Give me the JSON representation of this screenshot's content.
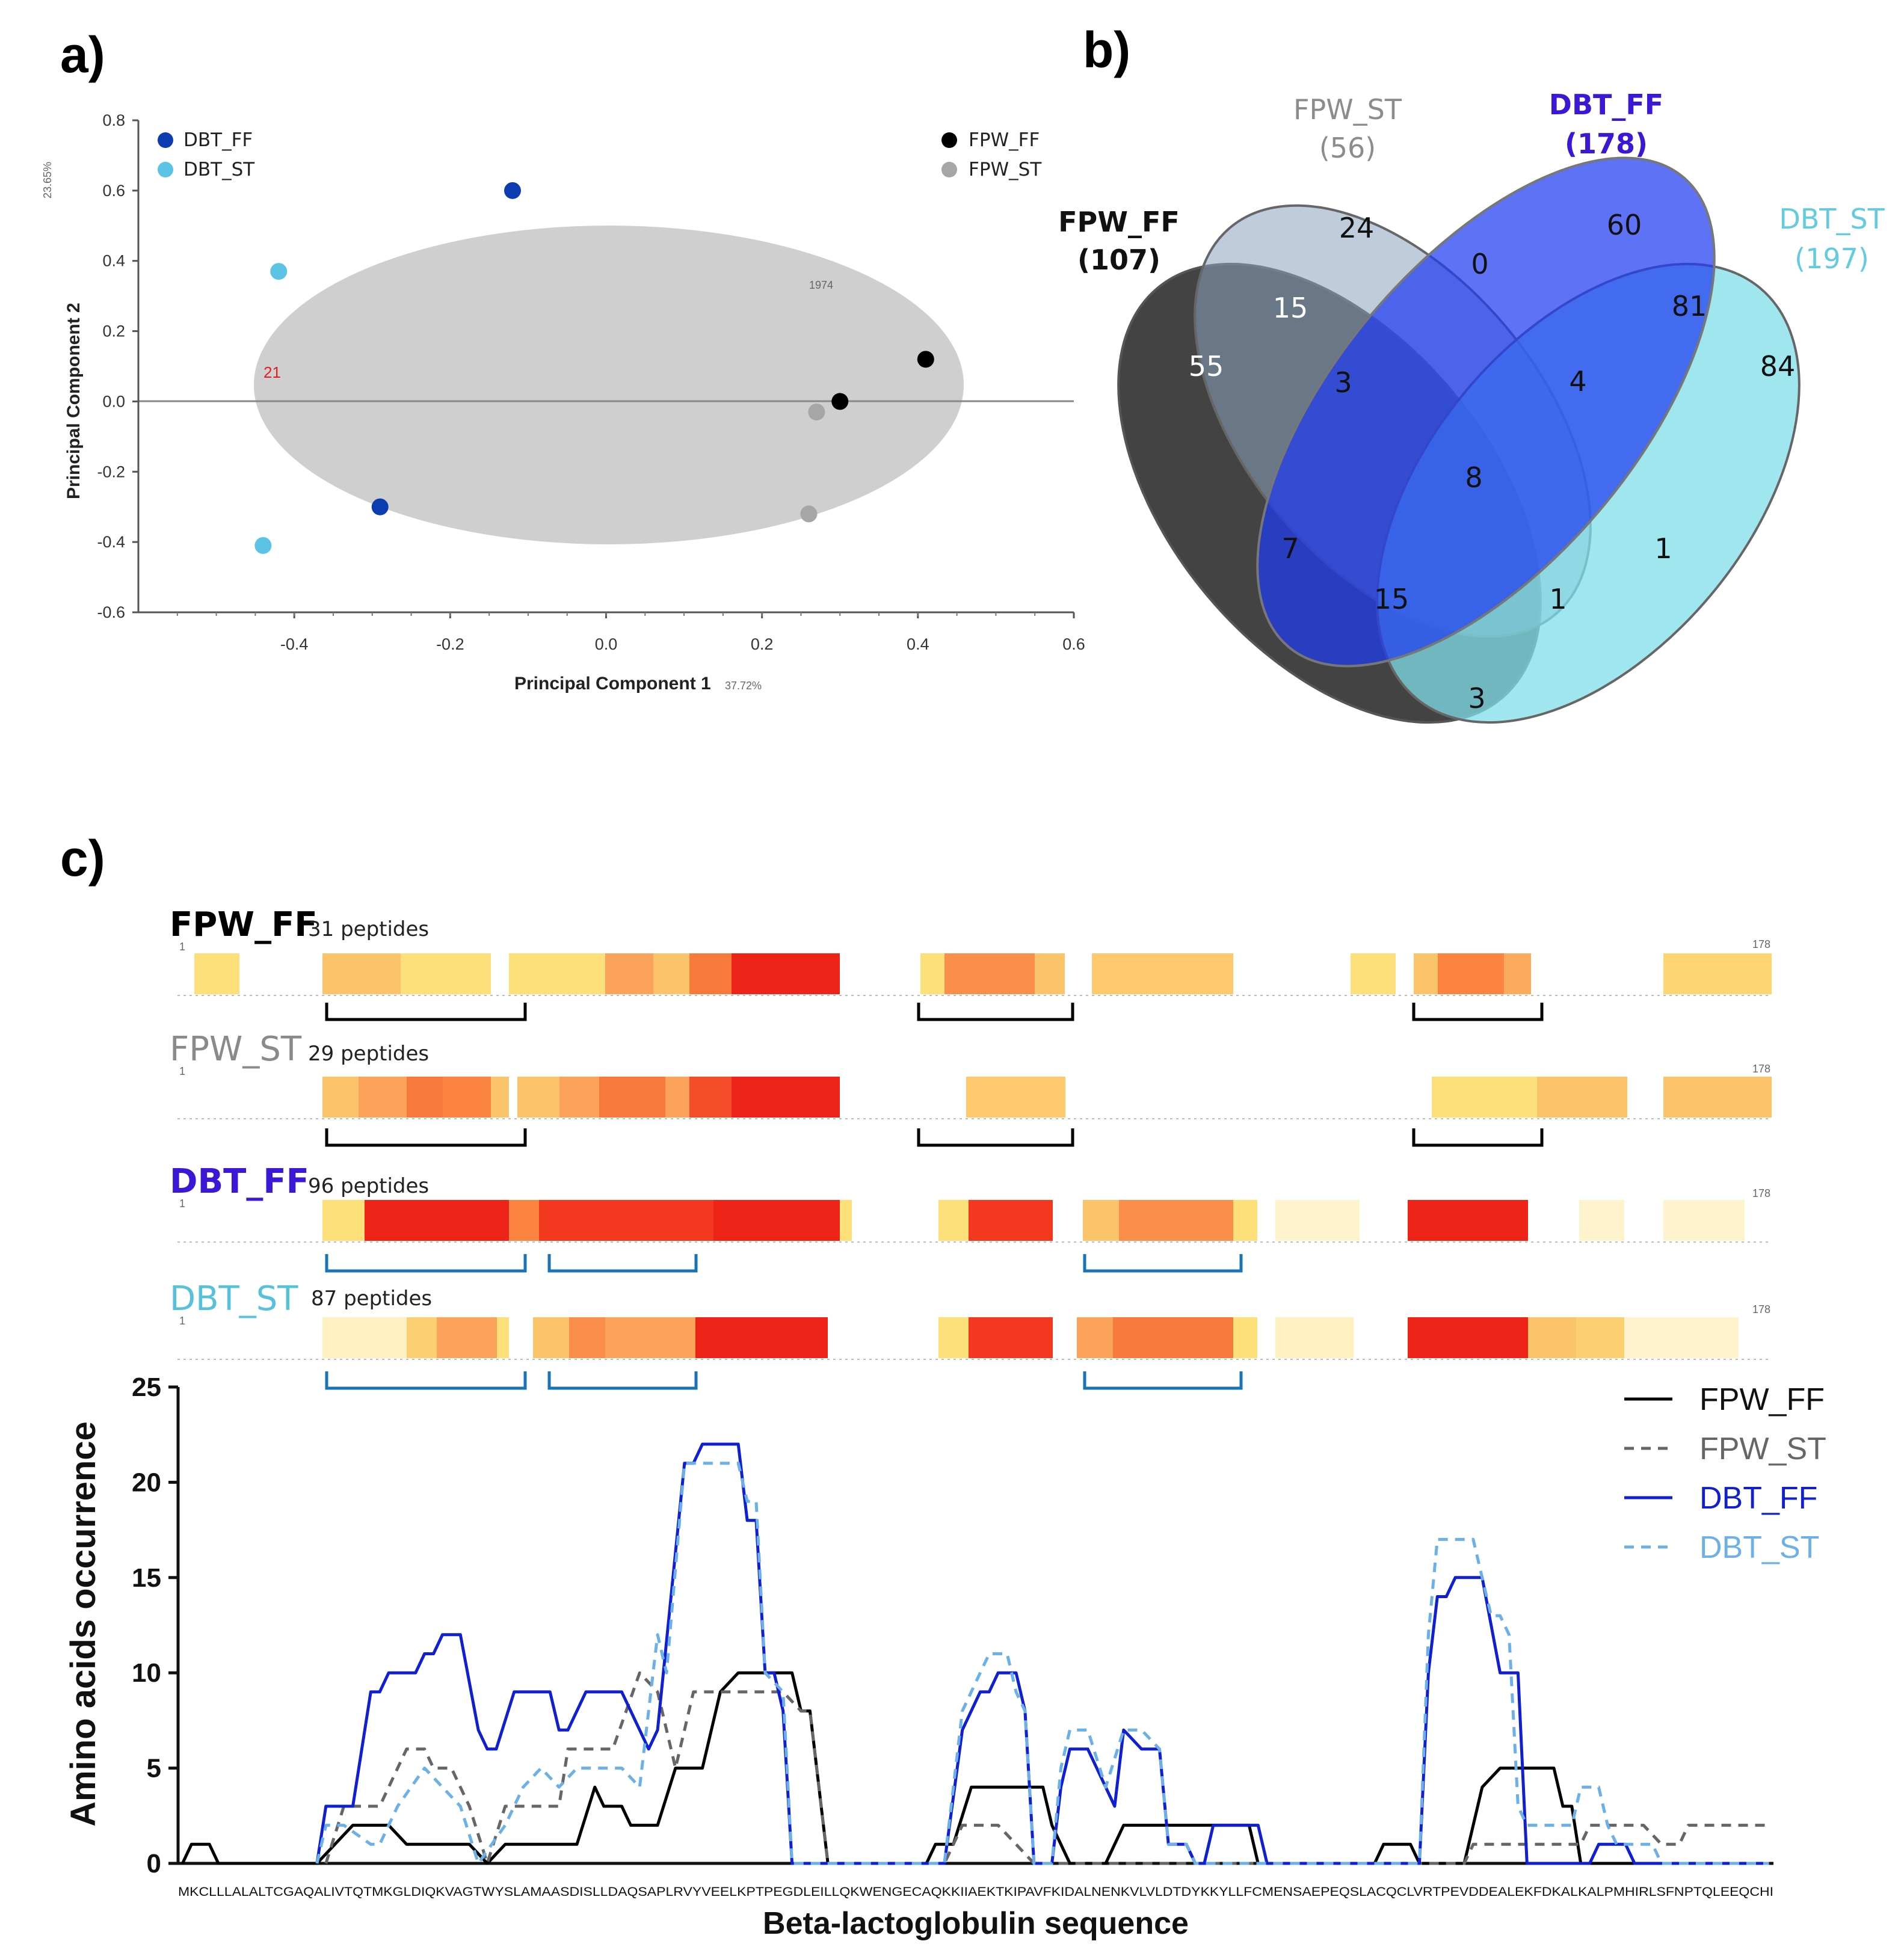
{
  "panels": {
    "a": "a)",
    "b": "b)",
    "c": "c)"
  },
  "chart_data": [
    {
      "type": "scatter",
      "panel": "a",
      "xlabel": "Principal Component 1",
      "ylabel": "Principal Component 2",
      "xlabel_note": "37.72%",
      "ylabel_note": "23.65%",
      "xlim": [
        -0.6,
        0.6
      ],
      "ylim": [
        -0.6,
        0.8
      ],
      "xticks": [
        "-0.4",
        "-0.2",
        "0.0",
        "0.2",
        "0.4",
        "0.6"
      ],
      "yticks": [
        "0.8",
        "0.6",
        "0.4",
        "0.2",
        "0.0",
        "-0.2",
        "-0.4",
        "-0.6"
      ],
      "ellipse_label": "21",
      "ellipse_tag": "1974",
      "series": [
        {
          "name": "DBT_FF",
          "color": "#0d3cb0",
          "points": [
            [
              -0.12,
              0.6
            ],
            [
              -0.29,
              -0.3
            ]
          ]
        },
        {
          "name": "DBT_ST",
          "color": "#5bc4e4",
          "points": [
            [
              -0.42,
              0.37
            ],
            [
              -0.44,
              -0.41
            ]
          ]
        },
        {
          "name": "FPW_FF",
          "color": "#000000",
          "points": [
            [
              0.41,
              0.12
            ],
            [
              0.3,
              0.0
            ]
          ]
        },
        {
          "name": "FPW_ST",
          "color": "#a6a6a6",
          "points": [
            [
              0.27,
              -0.03
            ],
            [
              0.26,
              -0.32
            ]
          ]
        }
      ]
    },
    {
      "type": "venn",
      "panel": "b",
      "sets": [
        {
          "name": "FPW_FF",
          "count": "(107)",
          "color": "#111111"
        },
        {
          "name": "FPW_ST",
          "count": "(56)",
          "color": "#8c8c8c"
        },
        {
          "name": "DBT_FF",
          "count": "(178)",
          "color": "#3b17d6"
        },
        {
          "name": "DBT_ST",
          "count": "(197)",
          "color": "#62cbe0"
        }
      ],
      "regions": [
        {
          "sets": "FPW_FF",
          "value": "55"
        },
        {
          "sets": "FPW_ST",
          "value": "24"
        },
        {
          "sets": "DBT_FF",
          "value": "60"
        },
        {
          "sets": "DBT_ST",
          "value": "84"
        },
        {
          "sets": "FPW_FF+FPW_ST",
          "value": "15"
        },
        {
          "sets": "FPW_ST+DBT_FF",
          "value": "0"
        },
        {
          "sets": "DBT_FF+DBT_ST",
          "value": "81"
        },
        {
          "sets": "FPW_FF+FPW_ST+DBT_FF",
          "value": "3"
        },
        {
          "sets": "FPW_ST+DBT_FF+DBT_ST",
          "value": "4"
        },
        {
          "sets": "all",
          "value": "8"
        },
        {
          "sets": "FPW_FF+DBT_FF",
          "value": "7"
        },
        {
          "sets": "FPW_ST+DBT_ST",
          "value": "1"
        },
        {
          "sets": "FPW_FF+DBT_FF+DBT_ST",
          "value": "15"
        },
        {
          "sets": "FPW_FF+FPW_ST+DBT_ST",
          "value": "1"
        },
        {
          "sets": "FPW_FF+DBT_ST",
          "value": "3"
        }
      ]
    },
    {
      "type": "heatmap",
      "panel": "c-top",
      "start_label": "1",
      "end_label": "178",
      "tracks": [
        {
          "name": "FPW_FF",
          "count": "31 peptides",
          "color": "#000000"
        },
        {
          "name": "FPW_ST",
          "count": "29 peptides",
          "color": "#8a8a8a"
        },
        {
          "name": "DBT_FF",
          "count": "96 peptides",
          "color": "#3b17d6"
        },
        {
          "name": "DBT_ST",
          "count": "87 peptides",
          "color": "#55c1da"
        }
      ]
    },
    {
      "type": "line",
      "panel": "c-bottom",
      "xlabel": "Beta-lactoglobulin sequence",
      "ylabel": "Amino acids occurrence",
      "ylim": [
        0,
        25
      ],
      "yticks": [
        "0",
        "5",
        "10",
        "15",
        "20",
        "25"
      ],
      "sequence": "MKCLLLALALTCGAQALIVTQTMKGLDIQKVAGTWYSLAMAASDISLLDAQSAPLRVYVEELKPTPEGDLEILLQKWENGECAQKKIIAEKTKIPAVFKIDALNENKVLVLDTDYKKYLLFCMENSAEPEQSLACQCLVRTPEVDDEALEKFDKALKALPMHIRLSFNPTQLEEQCHI",
      "series": [
        {
          "name": "FPW_FF",
          "color": "#000000",
          "style": "solid",
          "points": [
            [
              1,
              0
            ],
            [
              2,
              1
            ],
            [
              4,
              1
            ],
            [
              5,
              0
            ],
            [
              16,
              0
            ],
            [
              18,
              1
            ],
            [
              20,
              2
            ],
            [
              24,
              2
            ],
            [
              26,
              1
            ],
            [
              33,
              1
            ],
            [
              35,
              0
            ],
            [
              37,
              1
            ],
            [
              45,
              1
            ],
            [
              47,
              4
            ],
            [
              48,
              3
            ],
            [
              50,
              3
            ],
            [
              51,
              2
            ],
            [
              54,
              2
            ],
            [
              56,
              5
            ],
            [
              59,
              5
            ],
            [
              61,
              9
            ],
            [
              63,
              10
            ],
            [
              69,
              10
            ],
            [
              70,
              8
            ],
            [
              71,
              8
            ],
            [
              73,
              0
            ],
            [
              84,
              0
            ],
            [
              85,
              1
            ],
            [
              87,
              1
            ],
            [
              89,
              4
            ],
            [
              97,
              4
            ],
            [
              98,
              2
            ],
            [
              100,
              0
            ],
            [
              104,
              0
            ],
            [
              106,
              2
            ],
            [
              120,
              2
            ],
            [
              121,
              0
            ],
            [
              134,
              0
            ],
            [
              135,
              1
            ],
            [
              138,
              1
            ],
            [
              139,
              0
            ],
            [
              144,
              0
            ],
            [
              146,
              4
            ],
            [
              148,
              5
            ],
            [
              154,
              5
            ],
            [
              155,
              3
            ],
            [
              156,
              3
            ],
            [
              157,
              0
            ],
            [
              178,
              0
            ]
          ]
        },
        {
          "name": "FPW_ST",
          "color": "#666666",
          "style": "dashed",
          "points": [
            [
              17,
              0
            ],
            [
              19,
              3
            ],
            [
              23,
              3
            ],
            [
              26,
              6
            ],
            [
              28,
              6
            ],
            [
              29,
              5
            ],
            [
              31,
              5
            ],
            [
              33,
              3
            ],
            [
              35,
              0
            ],
            [
              37,
              3
            ],
            [
              43,
              3
            ],
            [
              44,
              6
            ],
            [
              49,
              6
            ],
            [
              52,
              10
            ],
            [
              54,
              9
            ],
            [
              56,
              5
            ],
            [
              58,
              9
            ],
            [
              60,
              9
            ],
            [
              62,
              9
            ],
            [
              68,
              9
            ],
            [
              70,
              8
            ],
            [
              71,
              8
            ],
            [
              73,
              0
            ],
            [
              86,
              0
            ],
            [
              88,
              2
            ],
            [
              92,
              2
            ],
            [
              94,
              1
            ],
            [
              96,
              0
            ],
            [
              144,
              0
            ],
            [
              145,
              1
            ],
            [
              157,
              1
            ],
            [
              158,
              2
            ],
            [
              164,
              2
            ],
            [
              166,
              1
            ],
            [
              168,
              1
            ],
            [
              169,
              2
            ],
            [
              178,
              2
            ]
          ]
        },
        {
          "name": "DBT_FF",
          "color": "#1020d0",
          "style": "solid",
          "points": [
            [
              16,
              0
            ],
            [
              17,
              3
            ],
            [
              20,
              3
            ],
            [
              22,
              9
            ],
            [
              23,
              9
            ],
            [
              24,
              10
            ],
            [
              27,
              10
            ],
            [
              28,
              11
            ],
            [
              29,
              11
            ],
            [
              30,
              12
            ],
            [
              32,
              12
            ],
            [
              34,
              7
            ],
            [
              35,
              6
            ],
            [
              36,
              6
            ],
            [
              38,
              9
            ],
            [
              42,
              9
            ],
            [
              43,
              7
            ],
            [
              44,
              7
            ],
            [
              46,
              9
            ],
            [
              50,
              9
            ],
            [
              52,
              7
            ],
            [
              53,
              6
            ],
            [
              54,
              7
            ],
            [
              57,
              21
            ],
            [
              58,
              21
            ],
            [
              59,
              22
            ],
            [
              63,
              22
            ],
            [
              64,
              18
            ],
            [
              65,
              18
            ],
            [
              66,
              10
            ],
            [
              67,
              10
            ],
            [
              68,
              8
            ],
            [
              69,
              0
            ],
            [
              86,
              0
            ],
            [
              88,
              7
            ],
            [
              90,
              9
            ],
            [
              91,
              9
            ],
            [
              92,
              10
            ],
            [
              94,
              10
            ],
            [
              95,
              8
            ],
            [
              96,
              0
            ],
            [
              98,
              0
            ],
            [
              99,
              4
            ],
            [
              100,
              6
            ],
            [
              102,
              6
            ],
            [
              103,
              5
            ],
            [
              105,
              3
            ],
            [
              106,
              7
            ],
            [
              108,
              6
            ],
            [
              110,
              6
            ],
            [
              111,
              1
            ],
            [
              113,
              1
            ],
            [
              114,
              0
            ],
            [
              115,
              0
            ],
            [
              116,
              2
            ],
            [
              121,
              2
            ],
            [
              122,
              0
            ],
            [
              139,
              0
            ],
            [
              140,
              10
            ],
            [
              141,
              14
            ],
            [
              142,
              14
            ],
            [
              143,
              15
            ],
            [
              146,
              15
            ],
            [
              148,
              10
            ],
            [
              150,
              10
            ],
            [
              151,
              0
            ],
            [
              158,
              0
            ],
            [
              159,
              1
            ],
            [
              162,
              1
            ],
            [
              163,
              0
            ],
            [
              178,
              0
            ]
          ]
        },
        {
          "name": "DBT_ST",
          "color": "#6cb0e8",
          "style": "dashed",
          "points": [
            [
              16,
              0
            ],
            [
              17,
              2
            ],
            [
              19,
              2
            ],
            [
              22,
              1
            ],
            [
              23,
              1
            ],
            [
              25,
              3
            ],
            [
              28,
              5
            ],
            [
              30,
              4
            ],
            [
              32,
              3
            ],
            [
              34,
              0
            ],
            [
              37,
              2
            ],
            [
              39,
              4
            ],
            [
              41,
              5
            ],
            [
              43,
              4
            ],
            [
              45,
              5
            ],
            [
              48,
              5
            ],
            [
              50,
              5
            ],
            [
              52,
              4
            ],
            [
              54,
              12
            ],
            [
              55,
              10
            ],
            [
              57,
              21
            ],
            [
              63,
              21
            ],
            [
              64,
              19
            ],
            [
              65,
              19
            ],
            [
              66,
              10
            ],
            [
              68,
              9
            ],
            [
              69,
              0
            ],
            [
              86,
              0
            ],
            [
              88,
              8
            ],
            [
              90,
              10
            ],
            [
              91,
              11
            ],
            [
              93,
              11
            ],
            [
              94,
              9
            ],
            [
              95,
              8
            ],
            [
              96,
              0
            ],
            [
              98,
              0
            ],
            [
              99,
              5
            ],
            [
              100,
              7
            ],
            [
              102,
              7
            ],
            [
              104,
              4
            ],
            [
              106,
              7
            ],
            [
              108,
              7
            ],
            [
              110,
              6
            ],
            [
              111,
              1
            ],
            [
              113,
              1
            ],
            [
              114,
              0
            ],
            [
              139,
              0
            ],
            [
              140,
              12
            ],
            [
              141,
              17
            ],
            [
              145,
              17
            ],
            [
              147,
              13
            ],
            [
              148,
              13
            ],
            [
              149,
              12
            ],
            [
              150,
              3
            ],
            [
              151,
              2
            ],
            [
              156,
              2
            ],
            [
              157,
              4
            ],
            [
              159,
              4
            ],
            [
              160,
              2
            ],
            [
              161,
              1
            ],
            [
              165,
              1
            ],
            [
              166,
              0
            ],
            [
              178,
              0
            ]
          ]
        }
      ]
    }
  ]
}
